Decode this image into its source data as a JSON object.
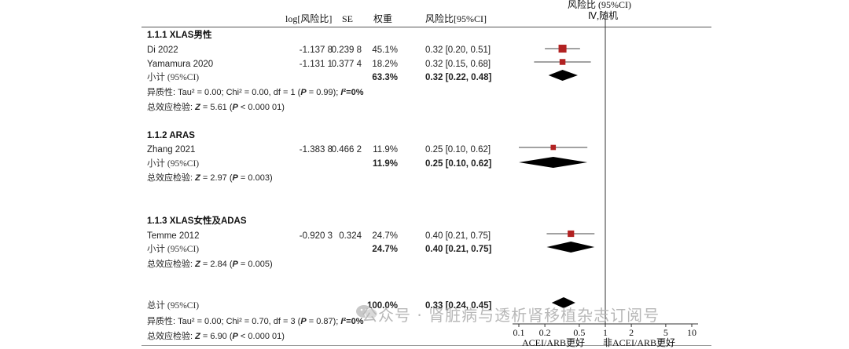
{
  "plot_header": {
    "line1": "风险比 (95%CI)",
    "line2": "Ⅳ,随机"
  },
  "columns": {
    "logrr": "log[风险比]",
    "se": "SE",
    "weight": "权重",
    "ci": "风险比[95%CI]"
  },
  "subgroups": [
    {
      "title": "1.1.1 XLAS男性",
      "studies": [
        {
          "name": "Di 2022",
          "logrr": "-1.137 8",
          "se": "0.239 8",
          "weight": "45.1%",
          "ci": "0.32 [0.20, 0.51]"
        },
        {
          "name": "Yamamura 2020",
          "logrr": "-1.131 1",
          "se": "0.377 4",
          "weight": "18.2%",
          "ci": "0.32 [0.15, 0.68]"
        }
      ],
      "subtotal": {
        "label": "小计 (95%CI)",
        "weight": "63.3%",
        "ci": "0.32 [0.22, 0.48]"
      },
      "heterogeneity": "异质性: Tau² = 0.00; Chi² = 0.00, df = 1 (P = 0.99); I²=0%",
      "effect_test": "总效应检验: Z = 5.61 (P < 0.000 01)"
    },
    {
      "title": "1.1.2 ARAS",
      "studies": [
        {
          "name": "Zhang 2021",
          "logrr": "-1.383 8",
          "se": "0.466 2",
          "weight": "11.9%",
          "ci": "0.25 [0.10, 0.62]"
        }
      ],
      "subtotal": {
        "label": "小计 (95%CI)",
        "weight": "11.9%",
        "ci": "0.25 [0.10, 0.62]"
      },
      "effect_test": "总效应检验: Z = 2.97 (P = 0.003)"
    },
    {
      "title": "1.1.3 XLAS女性及ADAS",
      "studies": [
        {
          "name": "Temme 2012",
          "logrr": "-0.920 3",
          "se": "0.324",
          "weight": "24.7%",
          "ci": "0.40 [0.21, 0.75]"
        }
      ],
      "subtotal": {
        "label": "小计 (95%CI)",
        "weight": "24.7%",
        "ci": "0.40 [0.21, 0.75]"
      },
      "effect_test": "总效应检验: Z = 2.84 (P = 0.005)"
    }
  ],
  "total": {
    "label": "总计 (95%CI)",
    "weight": "100.0%",
    "ci": "0.33 [0.24, 0.45]",
    "heterogeneity": "异质性: Tau² = 0.00; Chi² = 0.70, df = 3 (P = 0.87); I²=0%",
    "effect_test": "总效应检验: Z = 6.90 (P < 0.000 01)"
  },
  "watermark": "公众号 · 肾脏病与透析肾移植杂志订阅号",
  "chart_data": {
    "type": "forest",
    "scale": "log",
    "x_ticks": [
      "0.1",
      "0.2",
      "0.5",
      "1",
      "2",
      "5",
      "10"
    ],
    "xlim": [
      0.1,
      10
    ],
    "reference_line": 1,
    "x_caption_left": "ACEI/ARB更好",
    "x_caption_right": "非ACEI/ARB更好",
    "colors": {
      "study_marker": "#b22222",
      "diamond": "#000000",
      "line": "#444444"
    },
    "studies": [
      {
        "name": "Di 2022",
        "rr": 0.32,
        "low": 0.2,
        "high": 0.51,
        "weight": 45.1
      },
      {
        "name": "Yamamura 2020",
        "rr": 0.32,
        "low": 0.15,
        "high": 0.68,
        "weight": 18.2
      },
      {
        "name": "Zhang 2021",
        "rr": 0.25,
        "low": 0.1,
        "high": 0.62,
        "weight": 11.9
      },
      {
        "name": "Temme 2012",
        "rr": 0.4,
        "low": 0.21,
        "high": 0.75,
        "weight": 24.7
      }
    ],
    "subtotals": [
      {
        "name": "1.1.1 小计",
        "rr": 0.32,
        "low": 0.22,
        "high": 0.48
      },
      {
        "name": "1.1.2 小计",
        "rr": 0.25,
        "low": 0.1,
        "high": 0.62
      },
      {
        "name": "1.1.3 小计",
        "rr": 0.4,
        "low": 0.21,
        "high": 0.75
      }
    ],
    "overall": {
      "name": "总计",
      "rr": 0.33,
      "low": 0.24,
      "high": 0.45
    }
  }
}
